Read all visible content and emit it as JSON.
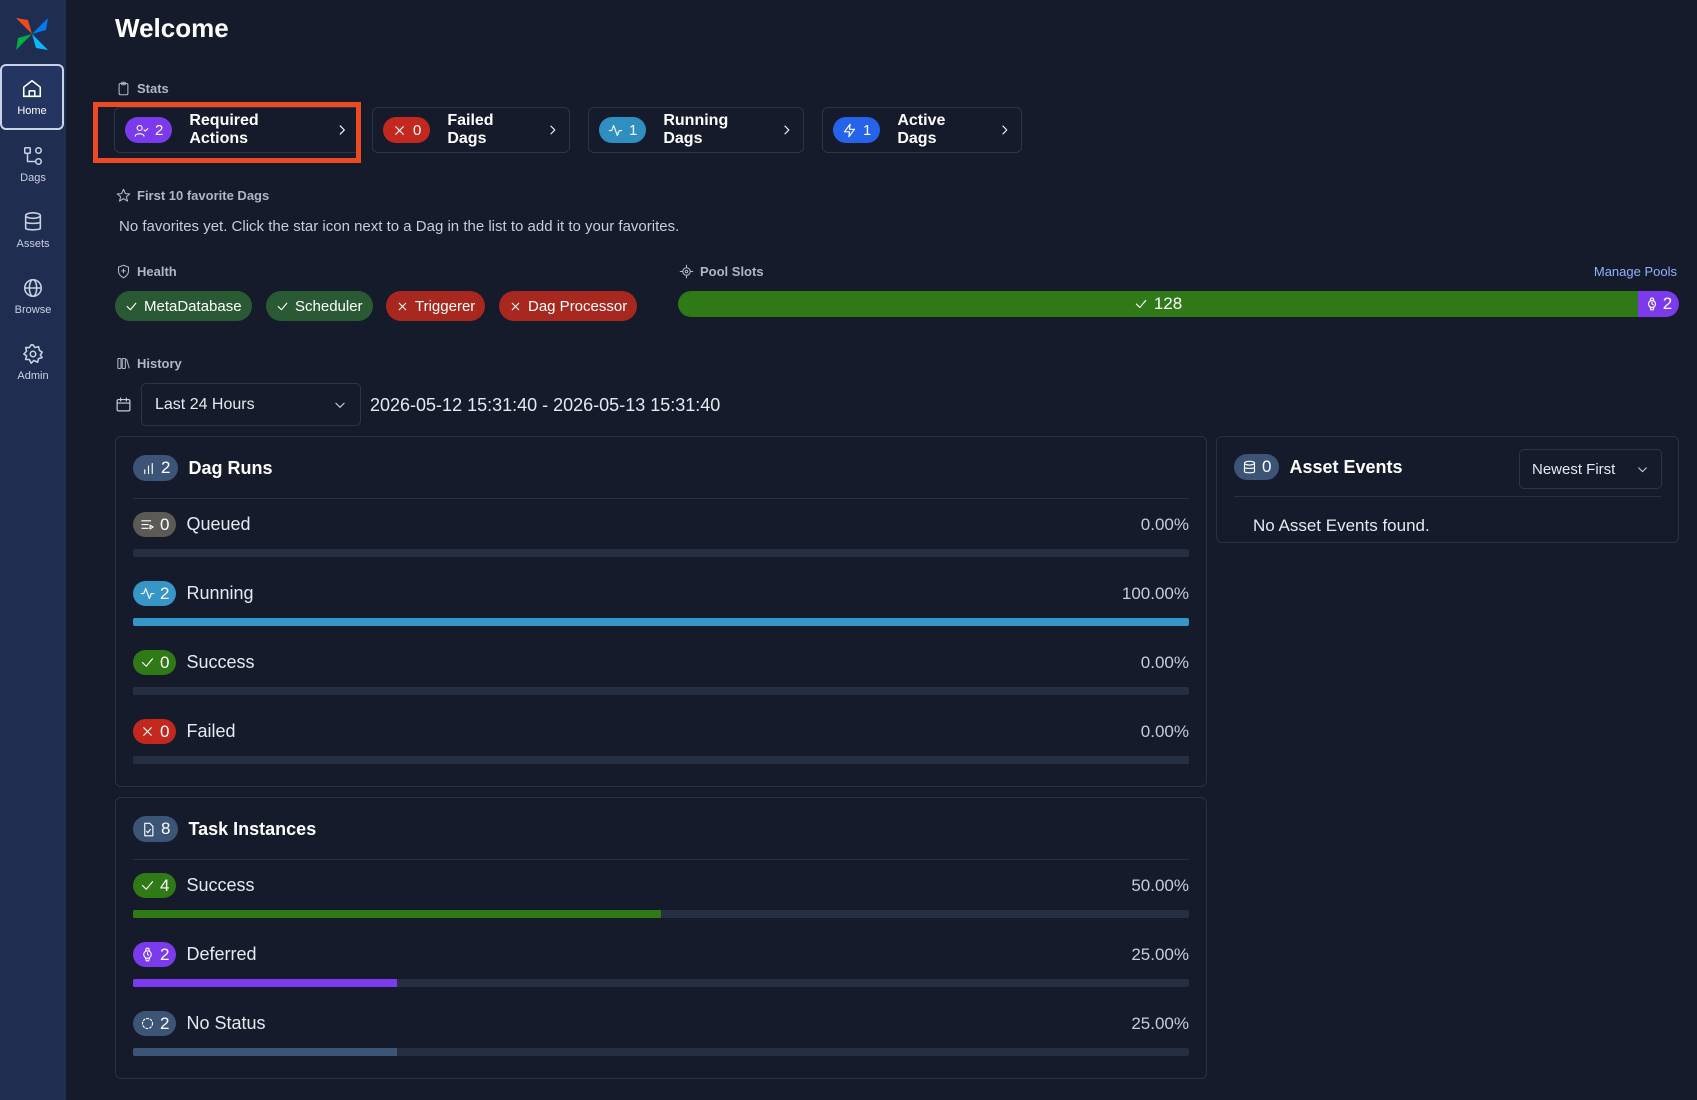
{
  "sidebar": {
    "items": [
      {
        "label": "Home",
        "icon": "home-icon"
      },
      {
        "label": "Dags",
        "icon": "dags-icon"
      },
      {
        "label": "Assets",
        "icon": "database-icon"
      },
      {
        "label": "Browse",
        "icon": "globe-icon"
      },
      {
        "label": "Admin",
        "icon": "gear-icon"
      }
    ]
  },
  "page": {
    "title": "Welcome"
  },
  "stats": {
    "label": "Stats",
    "cards": [
      {
        "count": "2",
        "label": "Required Actions",
        "color": "#7c3aed"
      },
      {
        "count": "0",
        "label": "Failed Dags",
        "color": "#c2281e"
      },
      {
        "count": "1",
        "label": "Running Dags",
        "color": "#2f8fc1"
      },
      {
        "count": "1",
        "label": "Active Dags",
        "color": "#2563eb"
      }
    ]
  },
  "favorites": {
    "label": "First 10 favorite Dags",
    "empty": "No favorites yet. Click the star icon next to a Dag in the list to add it to your favorites."
  },
  "health": {
    "label": "Health",
    "items": [
      {
        "label": "MetaDatabase",
        "status": "healthy"
      },
      {
        "label": "Scheduler",
        "status": "healthy"
      },
      {
        "label": "Triggerer",
        "status": "unhealthy"
      },
      {
        "label": "Dag Processor",
        "status": "unhealthy"
      }
    ]
  },
  "pool_slots": {
    "label": "Pool Slots",
    "manage": "Manage Pools",
    "open": "128",
    "deferred": "2"
  },
  "history": {
    "label": "History",
    "range": "Last 24 Hours",
    "range_text": "2026-05-12 15:31:40 - 2026-05-13 15:31:40"
  },
  "dag_runs": {
    "title": "Dag Runs",
    "count": "2",
    "rows": [
      {
        "label": "Queued",
        "count": "0",
        "pct": "0.00%",
        "fraction": 0,
        "color": "#5c5a55"
      },
      {
        "label": "Running",
        "count": "2",
        "pct": "100.00%",
        "fraction": 1,
        "color": "#3596c7"
      },
      {
        "label": "Success",
        "count": "0",
        "pct": "0.00%",
        "fraction": 0,
        "color": "#2f7a17"
      },
      {
        "label": "Failed",
        "count": "0",
        "pct": "0.00%",
        "fraction": 0,
        "color": "#c2281e"
      }
    ]
  },
  "task_instances": {
    "title": "Task Instances",
    "count": "8",
    "rows": [
      {
        "label": "Success",
        "count": "4",
        "pct": "50.00%",
        "fraction": 0.5,
        "color": "#2f7a17"
      },
      {
        "label": "Deferred",
        "count": "2",
        "pct": "25.00%",
        "fraction": 0.25,
        "color": "#7c3aed"
      },
      {
        "label": "No Status",
        "count": "2",
        "pct": "25.00%",
        "fraction": 0.25,
        "color": "#3c5577"
      }
    ]
  },
  "asset_events": {
    "title": "Asset Events",
    "count": "0",
    "sort": "Newest First",
    "empty": "No Asset Events found."
  }
}
